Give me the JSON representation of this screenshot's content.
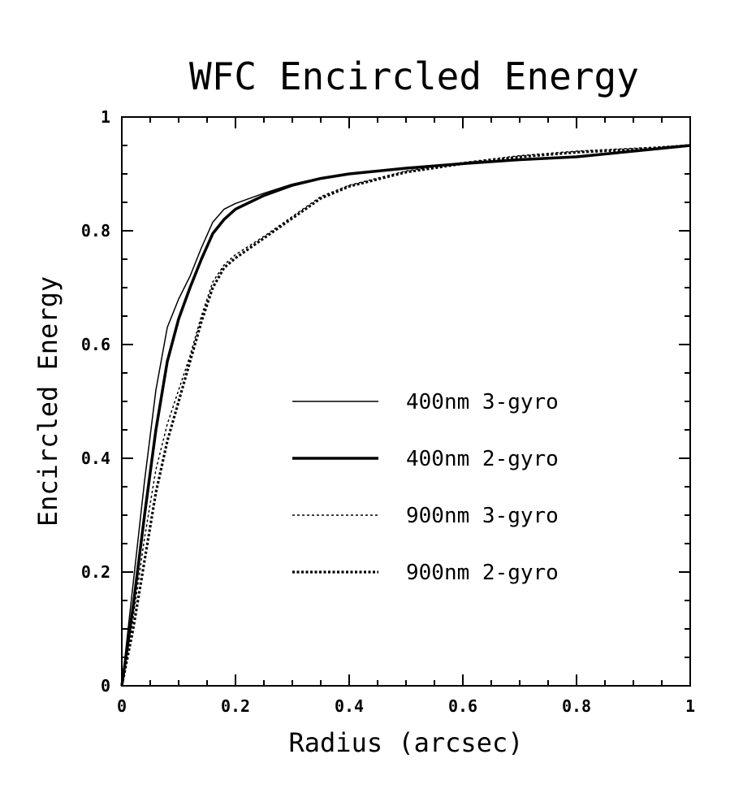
{
  "chart_data": {
    "type": "line",
    "title": "WFC Encircled Energy",
    "xlabel": "Radius (arcsec)",
    "ylabel": "Encircled Energy",
    "xlim": [
      0,
      1
    ],
    "ylim": [
      0,
      1
    ],
    "x_ticks": [
      0,
      0.2,
      0.4,
      0.6,
      0.8,
      1
    ],
    "y_ticks": [
      0,
      0.2,
      0.4,
      0.6,
      0.8,
      1
    ],
    "x_tick_labels": [
      "0",
      "0.2",
      "0.4",
      "0.6",
      "0.8",
      "1"
    ],
    "y_tick_labels": [
      "0",
      "0.2",
      "0.4",
      "0.6",
      "0.8",
      "1"
    ],
    "grid": false,
    "legend_position": "center-right",
    "series": [
      {
        "name": "400nm 3-gyro",
        "style": "thin-solid",
        "x": [
          0,
          0.01,
          0.02,
          0.04,
          0.06,
          0.08,
          0.1,
          0.12,
          0.14,
          0.16,
          0.18,
          0.2,
          0.25,
          0.3,
          0.35,
          0.4,
          0.5,
          0.6,
          0.7,
          0.8,
          0.9,
          1.0
        ],
        "y": [
          0,
          0.09,
          0.18,
          0.36,
          0.52,
          0.63,
          0.68,
          0.72,
          0.77,
          0.815,
          0.838,
          0.848,
          0.866,
          0.882,
          0.893,
          0.9,
          0.91,
          0.918,
          0.925,
          0.93,
          0.94,
          0.95
        ]
      },
      {
        "name": "400nm 2-gyro",
        "style": "thick-solid",
        "x": [
          0,
          0.01,
          0.02,
          0.04,
          0.06,
          0.08,
          0.1,
          0.12,
          0.14,
          0.16,
          0.18,
          0.2,
          0.25,
          0.3,
          0.35,
          0.4,
          0.5,
          0.6,
          0.7,
          0.8,
          0.9,
          1.0
        ],
        "y": [
          0,
          0.07,
          0.14,
          0.3,
          0.45,
          0.57,
          0.645,
          0.7,
          0.75,
          0.795,
          0.82,
          0.838,
          0.862,
          0.88,
          0.892,
          0.9,
          0.91,
          0.918,
          0.925,
          0.93,
          0.94,
          0.95
        ]
      },
      {
        "name": "900nm 3-gyro",
        "style": "thin-dotted",
        "x": [
          0,
          0.02,
          0.04,
          0.06,
          0.08,
          0.1,
          0.12,
          0.14,
          0.16,
          0.18,
          0.2,
          0.25,
          0.3,
          0.35,
          0.4,
          0.5,
          0.6,
          0.7,
          0.8,
          0.9,
          1.0
        ],
        "y": [
          0,
          0.12,
          0.26,
          0.38,
          0.46,
          0.52,
          0.58,
          0.65,
          0.71,
          0.74,
          0.758,
          0.79,
          0.825,
          0.86,
          0.88,
          0.905,
          0.92,
          0.932,
          0.94,
          0.945,
          0.95
        ]
      },
      {
        "name": "900nm 2-gyro",
        "style": "thick-dotted",
        "x": [
          0,
          0.02,
          0.04,
          0.06,
          0.08,
          0.1,
          0.12,
          0.14,
          0.16,
          0.18,
          0.2,
          0.25,
          0.3,
          0.35,
          0.4,
          0.5,
          0.6,
          0.7,
          0.8,
          0.9,
          1.0
        ],
        "y": [
          0,
          0.1,
          0.22,
          0.34,
          0.43,
          0.5,
          0.57,
          0.64,
          0.7,
          0.735,
          0.752,
          0.787,
          0.822,
          0.857,
          0.878,
          0.903,
          0.918,
          0.93,
          0.938,
          0.943,
          0.95
        ]
      }
    ]
  }
}
